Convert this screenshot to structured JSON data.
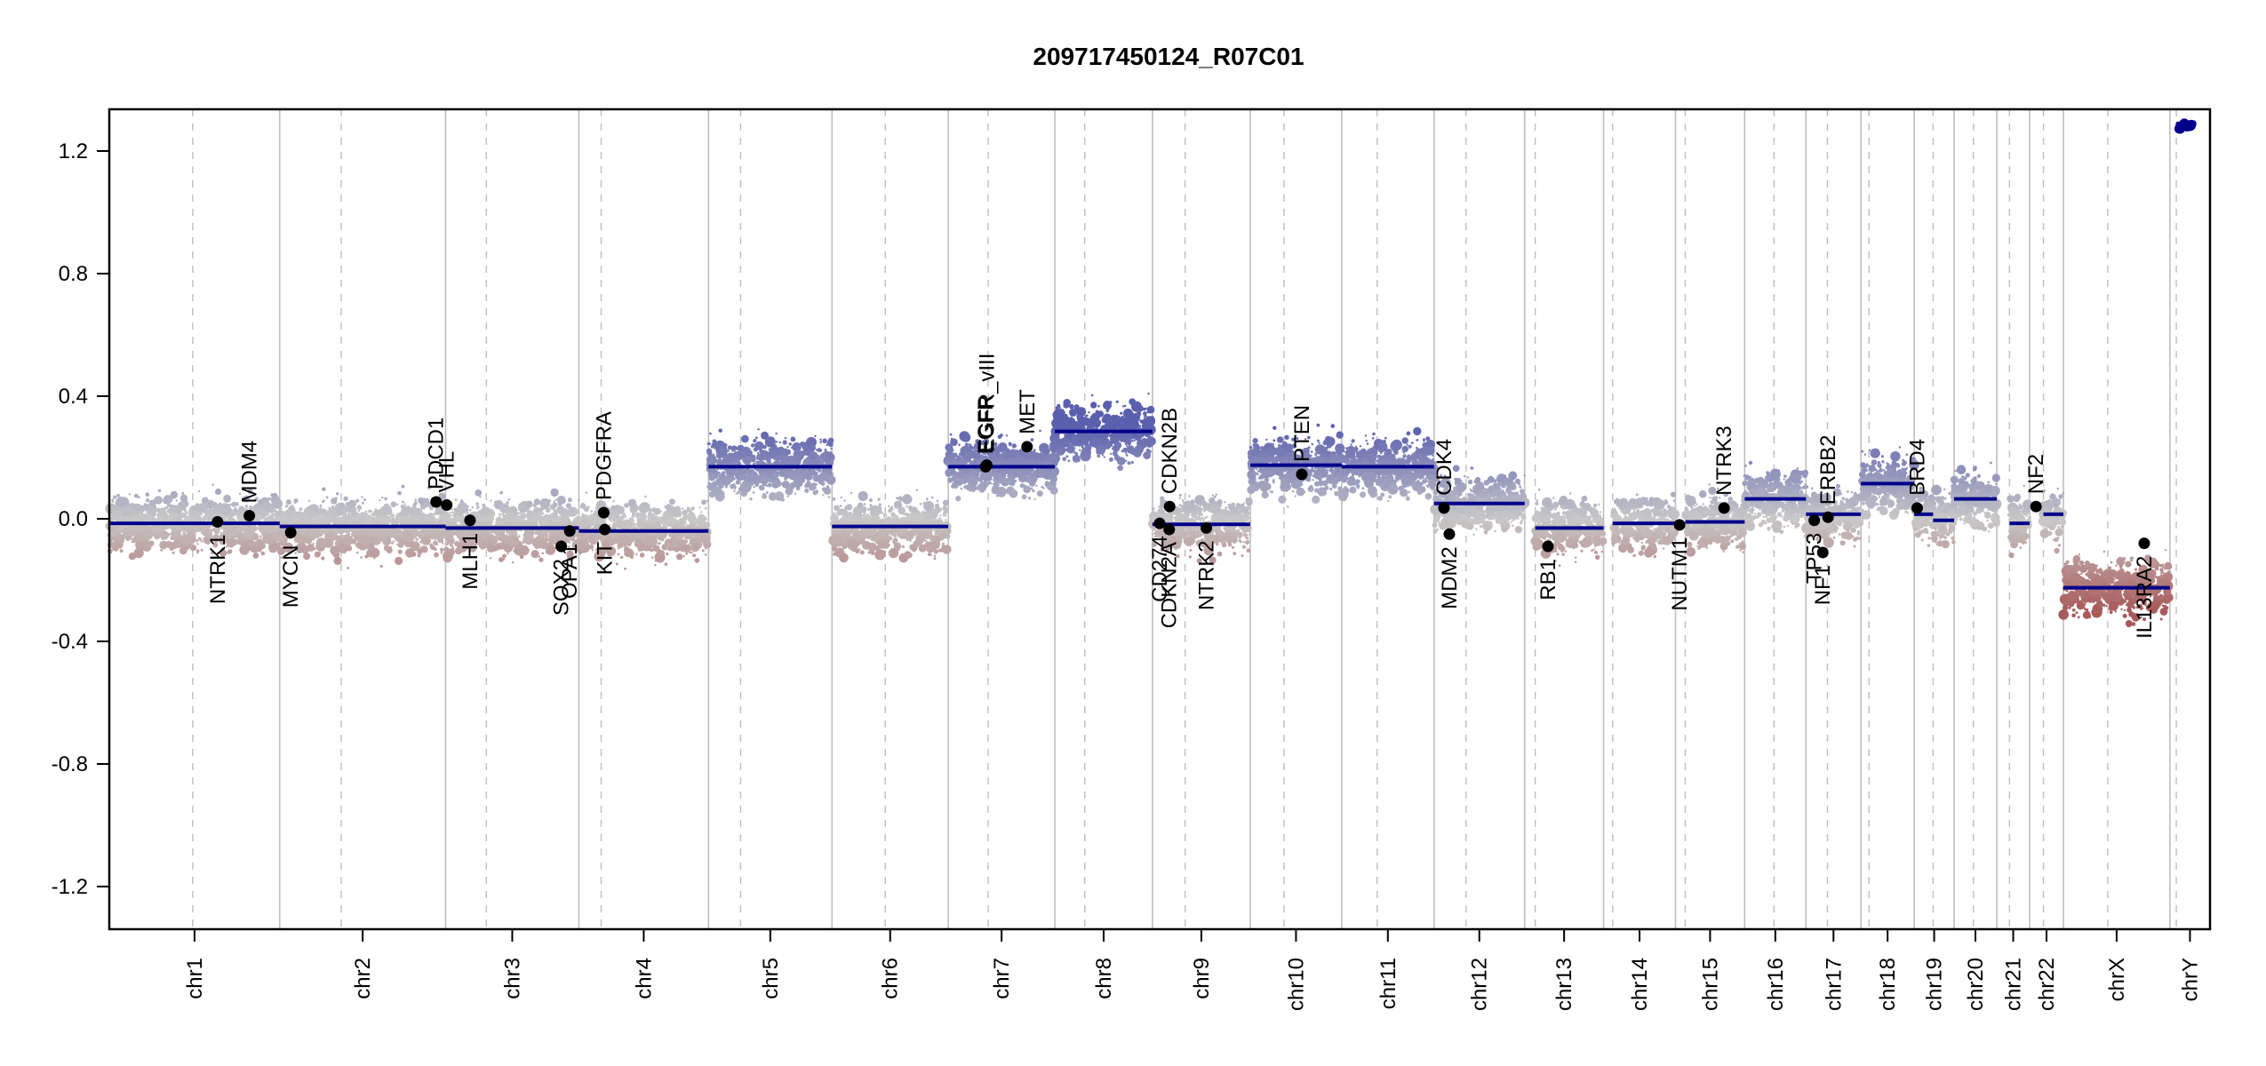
{
  "chart_data": {
    "type": "scatter",
    "title": "209717450124_R07C01",
    "xlabel": "",
    "ylabel": "",
    "ylim": [
      -1.35,
      1.35
    ],
    "yticks": [
      -1.2,
      -0.8,
      -0.4,
      0.0,
      0.4,
      0.8,
      1.2
    ],
    "ytick_labels": [
      "-1.2",
      "-0.8",
      "-0.4",
      "0.0",
      "0.4",
      "0.8",
      "1.2"
    ],
    "grid": false,
    "colors": {
      "segment": "#00008B",
      "gain": "#5A5FAE",
      "neutral": "#C8C8C8",
      "loss": "#A85A5A",
      "chrom_boundary": "#BEBEBE",
      "centromere": "#BEBEBE",
      "gene_dot": "#000000"
    },
    "chromosomes": [
      {
        "name": "chr1",
        "label": "chr1",
        "start": 0.0,
        "end": 0.0803,
        "centromere": 0.0393
      },
      {
        "name": "chr2",
        "label": "chr2",
        "start": 0.0803,
        "end": 0.1585,
        "centromere": 0.1093
      },
      {
        "name": "chr3",
        "label": "chr3",
        "start": 0.1585,
        "end": 0.2213,
        "centromere": 0.1777
      },
      {
        "name": "chr4",
        "label": "chr4",
        "start": 0.2213,
        "end": 0.2824,
        "centromere": 0.2318
      },
      {
        "name": "chr5",
        "label": "chr5",
        "start": 0.2824,
        "end": 0.3406,
        "centromere": 0.2975
      },
      {
        "name": "chr6",
        "label": "chr6",
        "start": 0.3406,
        "end": 0.3954,
        "centromere": 0.3657
      },
      {
        "name": "chr7",
        "label": "chr7",
        "start": 0.3954,
        "end": 0.4456,
        "centromere": 0.4142
      },
      {
        "name": "chr8",
        "label": "chr8",
        "start": 0.4456,
        "end": 0.4916,
        "centromere": 0.4597
      },
      {
        "name": "chr9",
        "label": "chr9",
        "start": 0.4916,
        "end": 0.5377,
        "centromere": 0.507
      },
      {
        "name": "chr10",
        "label": "chr10",
        "start": 0.5377,
        "end": 0.5808,
        "centromere": 0.5536
      },
      {
        "name": "chr11",
        "label": "chr11",
        "start": 0.5808,
        "end": 0.6243,
        "centromere": 0.5975
      },
      {
        "name": "chr12",
        "label": "chr12",
        "start": 0.6243,
        "end": 0.667,
        "centromere": 0.6394
      },
      {
        "name": "chr13",
        "label": "chr13",
        "start": 0.667,
        "end": 0.7042,
        "centromere": 0.672
      },
      {
        "name": "chr14",
        "label": "chr14",
        "start": 0.7042,
        "end": 0.7381,
        "centromere": 0.7085
      },
      {
        "name": "chr15",
        "label": "chr15",
        "start": 0.7381,
        "end": 0.7707,
        "centromere": 0.7427
      },
      {
        "name": "chr16",
        "label": "chr16",
        "start": 0.7707,
        "end": 0.7996,
        "centromere": 0.7845
      },
      {
        "name": "chr17",
        "label": "chr17",
        "start": 0.7996,
        "end": 0.8255,
        "centromere": 0.8097
      },
      {
        "name": "chr18",
        "label": "chr18",
        "start": 0.8255,
        "end": 0.8506,
        "centromere": 0.8293
      },
      {
        "name": "chr19",
        "label": "chr19",
        "start": 0.8506,
        "end": 0.8694,
        "centromere": 0.8595
      },
      {
        "name": "chr20",
        "label": "chr20",
        "start": 0.8694,
        "end": 0.8895,
        "centromere": 0.8785
      },
      {
        "name": "chr21",
        "label": "chr21",
        "start": 0.8895,
        "end": 0.905,
        "centromere": 0.8955
      },
      {
        "name": "chr22",
        "label": "chr22",
        "start": 0.905,
        "end": 0.9209,
        "centromere": 0.9115
      },
      {
        "name": "chrX",
        "label": "chrX",
        "start": 0.9209,
        "end": 0.9711,
        "centromere": 0.9418
      },
      {
        "name": "chrY",
        "label": "chrY",
        "start": 0.9711,
        "end": 0.99,
        "centromere": 0.9741
      }
    ],
    "segments": [
      {
        "chrom": "chr1",
        "from": 0.0,
        "to": 0.0803,
        "value": -0.015
      },
      {
        "chrom": "chr2",
        "from": 0.0803,
        "to": 0.1585,
        "value": -0.025
      },
      {
        "chrom": "chr3",
        "from": 0.1585,
        "to": 0.2213,
        "value": -0.03
      },
      {
        "chrom": "chr4",
        "from": 0.2213,
        "to": 0.2824,
        "value": -0.04
      },
      {
        "chrom": "chr5",
        "from": 0.2824,
        "to": 0.3406,
        "value": 0.17
      },
      {
        "chrom": "chr6",
        "from": 0.3406,
        "to": 0.3954,
        "value": -0.025
      },
      {
        "chrom": "chr7",
        "from": 0.3954,
        "to": 0.4456,
        "value": 0.17
      },
      {
        "chrom": "chr8",
        "from": 0.4456,
        "to": 0.4916,
        "value": 0.285
      },
      {
        "chrom": "chr9",
        "from": 0.4916,
        "to": 0.5377,
        "value": -0.018
      },
      {
        "chrom": "chr10",
        "from": 0.5377,
        "to": 0.5808,
        "value": 0.175
      },
      {
        "chrom": "chr11",
        "from": 0.5808,
        "to": 0.6243,
        "value": 0.17
      },
      {
        "chrom": "chr12",
        "from": 0.6243,
        "to": 0.667,
        "value": 0.05
      },
      {
        "chrom": "chr13",
        "from": 0.672,
        "to": 0.7042,
        "value": -0.03
      },
      {
        "chrom": "chr14",
        "from": 0.7085,
        "to": 0.7381,
        "value": -0.015
      },
      {
        "chrom": "chr15",
        "from": 0.7427,
        "to": 0.7707,
        "value": -0.01
      },
      {
        "chrom": "chr16",
        "from": 0.7707,
        "to": 0.7996,
        "value": 0.065
      },
      {
        "chrom": "chr17",
        "from": 0.7996,
        "to": 0.8255,
        "value": 0.015
      },
      {
        "chrom": "chr18",
        "from": 0.8255,
        "to": 0.8506,
        "value": 0.115
      },
      {
        "chrom": "chr19",
        "from": 0.8506,
        "to": 0.8595,
        "value": 0.015
      },
      {
        "chrom": "chr19",
        "from": 0.8595,
        "to": 0.8694,
        "value": -0.005
      },
      {
        "chrom": "chr20",
        "from": 0.8694,
        "to": 0.8895,
        "value": 0.065
      },
      {
        "chrom": "chr21",
        "from": 0.8955,
        "to": 0.905,
        "value": -0.015
      },
      {
        "chrom": "chr22",
        "from": 0.9115,
        "to": 0.9209,
        "value": 0.015
      },
      {
        "chrom": "chrX",
        "from": 0.9209,
        "to": 0.9711,
        "value": -0.225
      },
      {
        "chrom": "chrY",
        "from": 0.9741,
        "to": 0.982,
        "value": 1.28
      }
    ],
    "genes": [
      {
        "name": "NTRK1",
        "x": 0.051,
        "value": -0.01,
        "label_side": "below"
      },
      {
        "name": "MDM4",
        "x": 0.066,
        "value": 0.01,
        "label_side": "above"
      },
      {
        "name": "MYCN",
        "x": 0.0855,
        "value": -0.045,
        "label_side": "below"
      },
      {
        "name": "PDCD1",
        "x": 0.154,
        "value": 0.055,
        "label_side": "above"
      },
      {
        "name": "VHL",
        "x": 0.159,
        "value": 0.045,
        "label_side": "above"
      },
      {
        "name": "MLH1",
        "x": 0.17,
        "value": -0.005,
        "label_side": "below"
      },
      {
        "name": "SOX2",
        "x": 0.213,
        "value": -0.09,
        "label_side": "below"
      },
      {
        "name": "OPA1",
        "x": 0.217,
        "value": -0.04,
        "label_side": "below"
      },
      {
        "name": "PDGFRA",
        "x": 0.233,
        "value": 0.02,
        "label_side": "above"
      },
      {
        "name": "KIT",
        "x": 0.2335,
        "value": -0.035,
        "label_side": "below"
      },
      {
        "name": "EGFR",
        "x": 0.413,
        "value": 0.17,
        "label_side": "above"
      },
      {
        "name": "EGFR_vIII",
        "x": 0.4135,
        "value": 0.175,
        "label_side": "above"
      },
      {
        "name": "MET",
        "x": 0.4325,
        "value": 0.235,
        "label_side": "above"
      },
      {
        "name": "CD274",
        "x": 0.495,
        "value": -0.015,
        "label_side": "below"
      },
      {
        "name": "CDKN2A",
        "x": 0.4995,
        "value": -0.035,
        "label_side": "below"
      },
      {
        "name": "CDKN2B",
        "x": 0.4997,
        "value": 0.04,
        "label_side": "above"
      },
      {
        "name": "NTRK2",
        "x": 0.517,
        "value": -0.03,
        "label_side": "below"
      },
      {
        "name": "PTEN",
        "x": 0.562,
        "value": 0.145,
        "label_side": "above"
      },
      {
        "name": "CDK4",
        "x": 0.629,
        "value": 0.035,
        "label_side": "above"
      },
      {
        "name": "MDM2",
        "x": 0.6315,
        "value": -0.05,
        "label_side": "below"
      },
      {
        "name": "RB1",
        "x": 0.678,
        "value": -0.09,
        "label_side": "below"
      },
      {
        "name": "NUTM1",
        "x": 0.74,
        "value": -0.02,
        "label_side": "below"
      },
      {
        "name": "NTRK3",
        "x": 0.761,
        "value": 0.035,
        "label_side": "above"
      },
      {
        "name": "TP53",
        "x": 0.8035,
        "value": -0.005,
        "label_side": "below"
      },
      {
        "name": "NF1",
        "x": 0.8075,
        "value": -0.11,
        "label_side": "below"
      },
      {
        "name": "ERBB2",
        "x": 0.81,
        "value": 0.005,
        "label_side": "above"
      },
      {
        "name": "BRD4",
        "x": 0.852,
        "value": 0.035,
        "label_side": "above"
      },
      {
        "name": "NF2",
        "x": 0.908,
        "value": 0.04,
        "label_side": "above"
      },
      {
        "name": "IL13RA2",
        "x": 0.959,
        "value": -0.08,
        "label_side": "below"
      }
    ]
  }
}
